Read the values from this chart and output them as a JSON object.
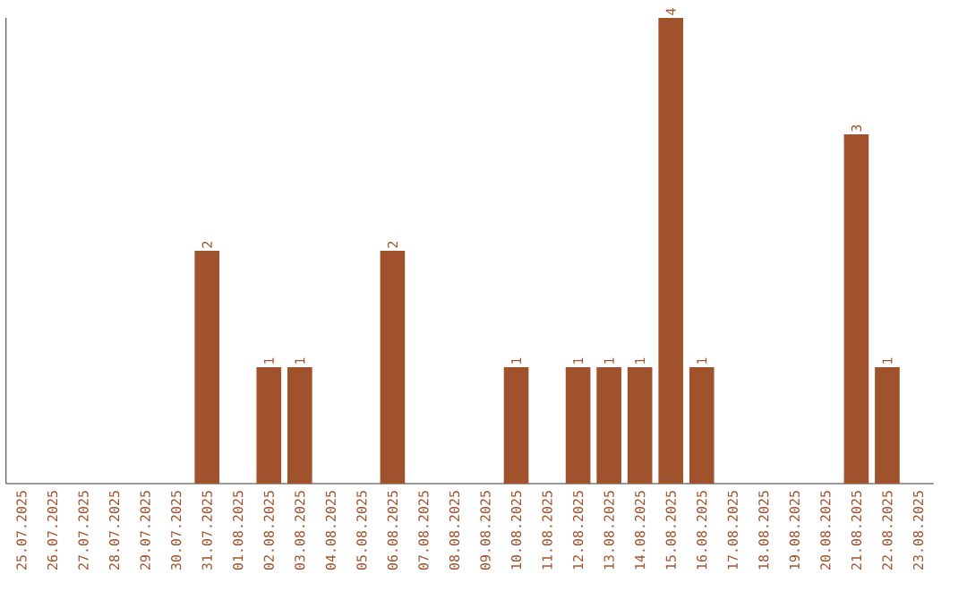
{
  "chart_data": {
    "type": "bar",
    "color": "#a0522d",
    "categories": [
      "25.07.2025",
      "26.07.2025",
      "27.07.2025",
      "28.07.2025",
      "29.07.2025",
      "30.07.2025",
      "31.07.2025",
      "01.08.2025",
      "02.08.2025",
      "03.08.2025",
      "04.08.2025",
      "05.08.2025",
      "06.08.2025",
      "07.08.2025",
      "08.08.2025",
      "09.08.2025",
      "10.08.2025",
      "11.08.2025",
      "12.08.2025",
      "13.08.2025",
      "14.08.2025",
      "15.08.2025",
      "16.08.2025",
      "17.08.2025",
      "18.08.2025",
      "19.08.2025",
      "20.08.2025",
      "21.08.2025",
      "22.08.2025",
      "23.08.2025"
    ],
    "values": [
      0,
      0,
      0,
      0,
      0,
      0,
      2,
      0,
      1,
      1,
      0,
      0,
      2,
      0,
      0,
      0,
      1,
      0,
      1,
      1,
      1,
      4,
      1,
      0,
      0,
      0,
      0,
      3,
      1,
      0
    ],
    "value_labels": [
      null,
      null,
      null,
      null,
      null,
      null,
      "2",
      null,
      "1",
      "1",
      null,
      null,
      "2",
      null,
      null,
      null,
      "1",
      null,
      "1",
      "1",
      "1",
      "4",
      "1",
      null,
      null,
      null,
      null,
      "3",
      "1",
      null
    ],
    "grid": false,
    "tick_labels": "x"
  }
}
